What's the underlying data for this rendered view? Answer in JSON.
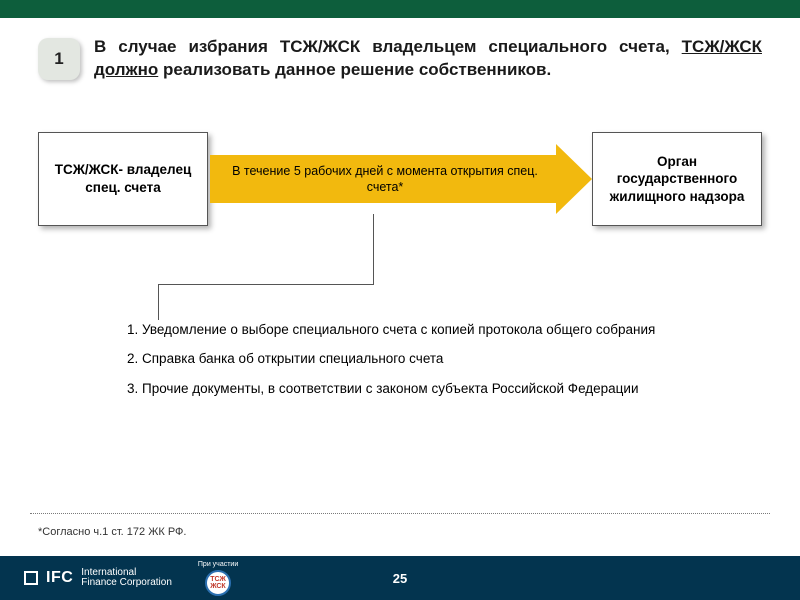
{
  "colors": {
    "topbar": "#0d5e3c",
    "footer": "#03344f",
    "arrow": "#f2b90e",
    "badge_bg": "#e3e7e1",
    "box_border": "#555555",
    "dotted": "#7a7a7a"
  },
  "step_number": "1",
  "header": {
    "pre": "В случае избрания ТСЖ/ЖСК владельцем специального счета, ",
    "underlined": "ТСЖ/ЖСК должно",
    "post": " реализовать данное решение собственников."
  },
  "flow": {
    "left_box": "ТСЖ/ЖСК- владелец спец. счета",
    "arrow_label": "В течение 5 рабочих дней с момента открытия спец. счета*",
    "right_box": "Орган государственного жилищного надзора"
  },
  "list_items": [
    "Уведомление о выборе специального счета с копией протокола общего собрания",
    "Справка банка об открытии специального счета",
    "Прочие документы, в соответствии с законом субъекта Российской Федерации"
  ],
  "footnote": "*Согласно ч.1 ст. 172  ЖК РФ.",
  "footer": {
    "ifc_label": "IFC",
    "ifc_name1": "International",
    "ifc_name2": "Finance Corporation",
    "partner_caption": "При участии",
    "partner_badge_top": "ТСЖ",
    "partner_badge_bottom": "ЖСК",
    "page": "25"
  }
}
